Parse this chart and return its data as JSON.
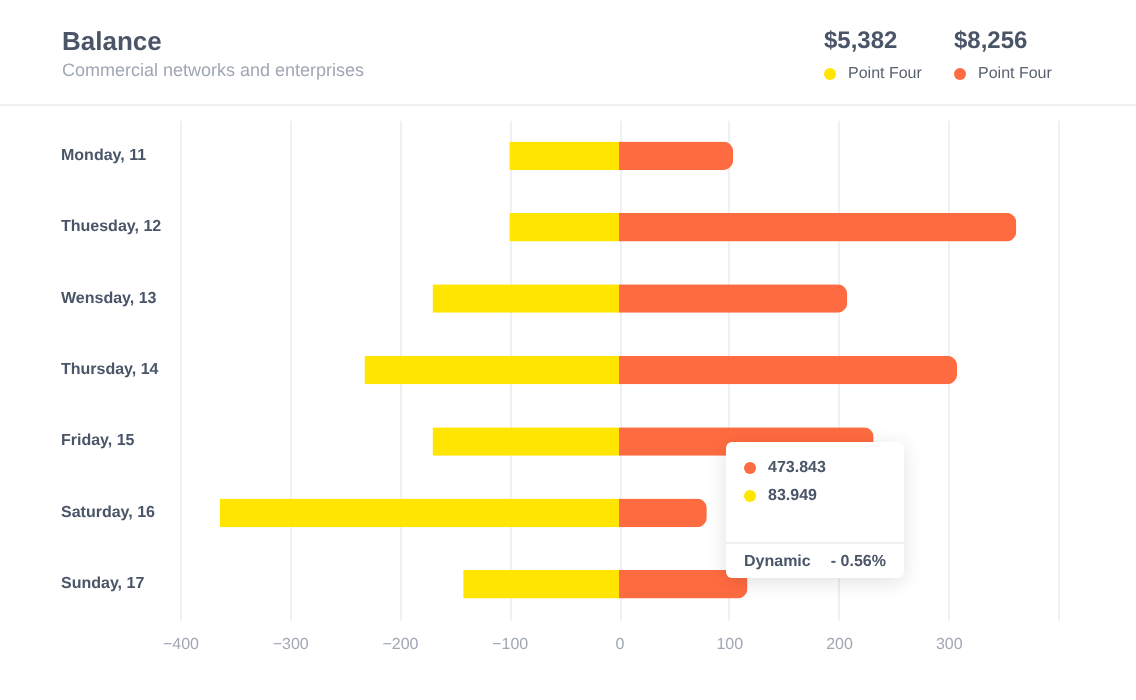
{
  "chart_data": {
    "type": "bar",
    "orientation": "horizontal",
    "stacked": true,
    "title": "Balance",
    "subtitle": "Commercial networks and enterprises",
    "categories": [
      "Monday, 11",
      "Thuesday, 12",
      "Wensday, 13",
      "Thursday, 14",
      "Friday, 15",
      "Saturday, 16",
      "Sunday, 17"
    ],
    "series": [
      {
        "name": "Point Four",
        "color": "#ffe500",
        "values": [
          -100,
          -100,
          -170,
          -232,
          -170,
          -364,
          -142
        ]
      },
      {
        "name": "Point Four",
        "color": "#ff6b40",
        "values": [
          104,
          362,
          208,
          308,
          232,
          80,
          117
        ]
      }
    ],
    "xlim": [
      -400,
      400
    ],
    "xticks": [
      -400,
      -300,
      -200,
      -100,
      0,
      100,
      200,
      300,
      {
        "value": 400,
        "label": null
      }
    ],
    "grid": "x",
    "legend": "top right",
    "annotations": [
      "$5,382",
      "$8,256",
      "473.843",
      "83.949",
      "Dynamic",
      "- 0.56%"
    ]
  }
}
